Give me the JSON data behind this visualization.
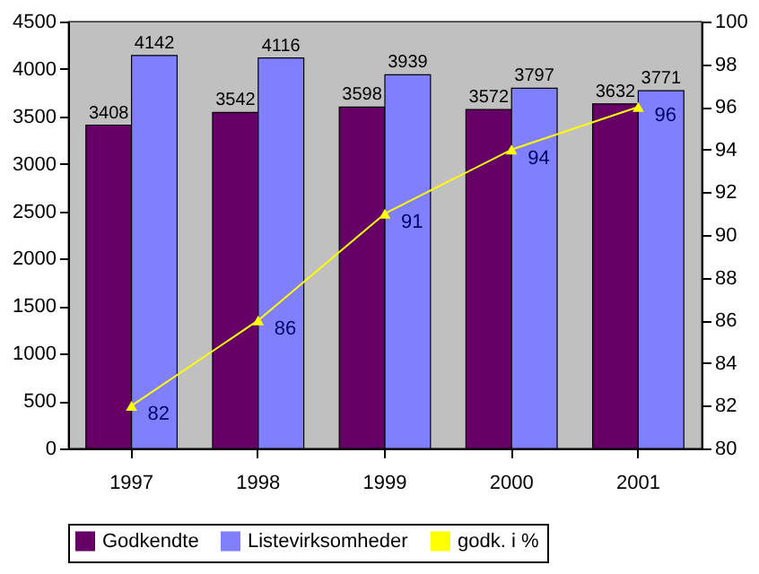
{
  "chart_data": {
    "type": "bar",
    "categories": [
      "1997",
      "1998",
      "1999",
      "2000",
      "2001"
    ],
    "series": [
      {
        "name": "Godkendte",
        "color": "#660066",
        "values": [
          3408,
          3542,
          3598,
          3572,
          3632
        ]
      },
      {
        "name": "Listevirksomheder",
        "color": "#8080ff",
        "values": [
          4142,
          4116,
          3939,
          3797,
          3771
        ]
      },
      {
        "name": "godk. i %",
        "type": "line",
        "axis": "y2",
        "color": "#ffff00",
        "marker": "triangle",
        "values": [
          82,
          86,
          91,
          94,
          96
        ]
      }
    ],
    "ylim": [
      0,
      4500
    ],
    "yticks": [
      0,
      500,
      1000,
      1500,
      2000,
      2500,
      3000,
      3500,
      4000,
      4500
    ],
    "y2lim": [
      80,
      100
    ],
    "y2ticks": [
      80,
      82,
      84,
      86,
      88,
      90,
      92,
      94,
      96,
      98,
      100
    ],
    "data_labels": true,
    "grid": false,
    "legend": "bottom"
  }
}
